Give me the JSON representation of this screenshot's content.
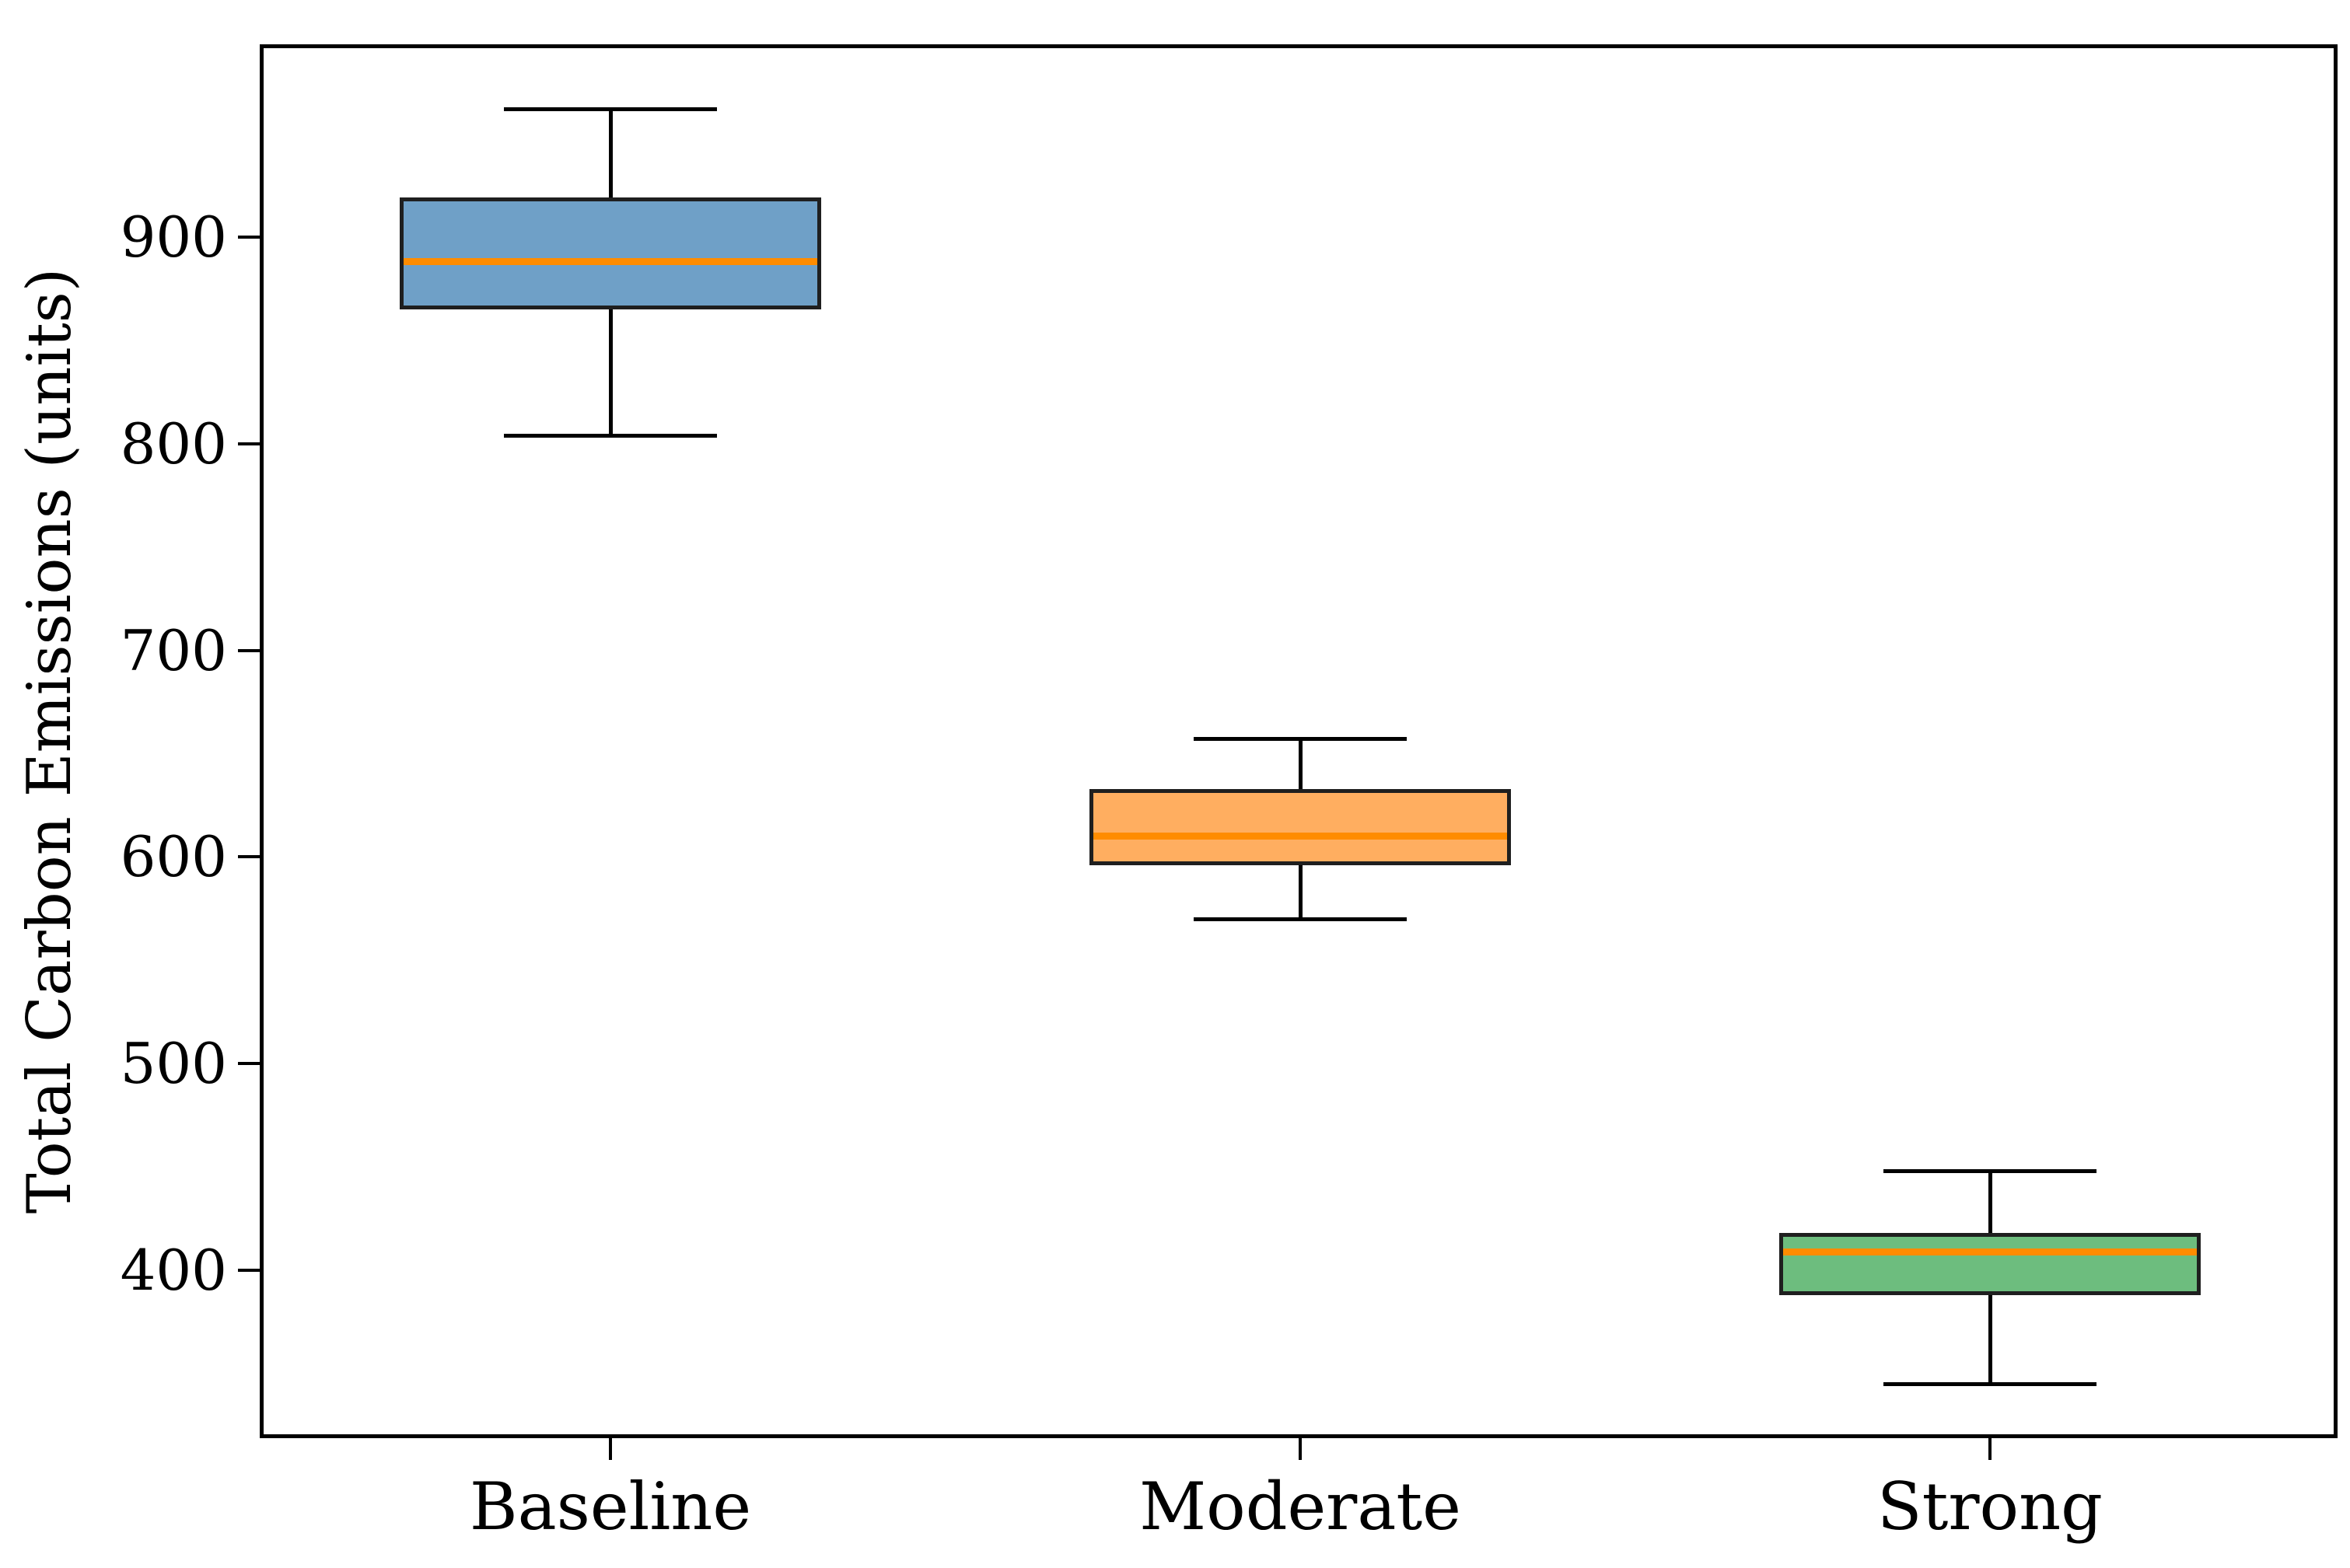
{
  "figure": {
    "ylabel": "Total Carbon Emissions (units)",
    "y_ticks": [
      400,
      500,
      600,
      700,
      800,
      900
    ],
    "x_tick_labels": [
      "Baseline",
      "Moderate",
      "Strong"
    ]
  },
  "chart_data": {
    "type": "box",
    "title": "",
    "xlabel": "",
    "ylabel": "Total Carbon Emissions (units)",
    "categories": [
      "Baseline",
      "Moderate",
      "Strong"
    ],
    "series": [
      {
        "name": "Baseline",
        "whisker_low": 804,
        "q1": 865,
        "median": 888,
        "q3": 919,
        "whisker_high": 962,
        "fill_color": "#6fa0c7"
      },
      {
        "name": "Moderate",
        "whisker_low": 570,
        "q1": 596,
        "median": 610,
        "q3": 633,
        "whisker_high": 657,
        "fill_color": "#ffae60"
      },
      {
        "name": "Strong",
        "whisker_low": 345,
        "q1": 388,
        "median": 409,
        "q3": 418,
        "whisker_high": 448,
        "fill_color": "#6dbd7e"
      }
    ],
    "y_axis_ticks": [
      400,
      500,
      600,
      700,
      800,
      900
    ],
    "ylim": [
      320,
      994
    ],
    "grid": false,
    "legend": null,
    "median_color": "#ff8c00",
    "whisker_color": "#000000",
    "box_edge_color": "#1f1f1f",
    "tick_label_color": "#000000",
    "background_color": "#ffffff"
  }
}
